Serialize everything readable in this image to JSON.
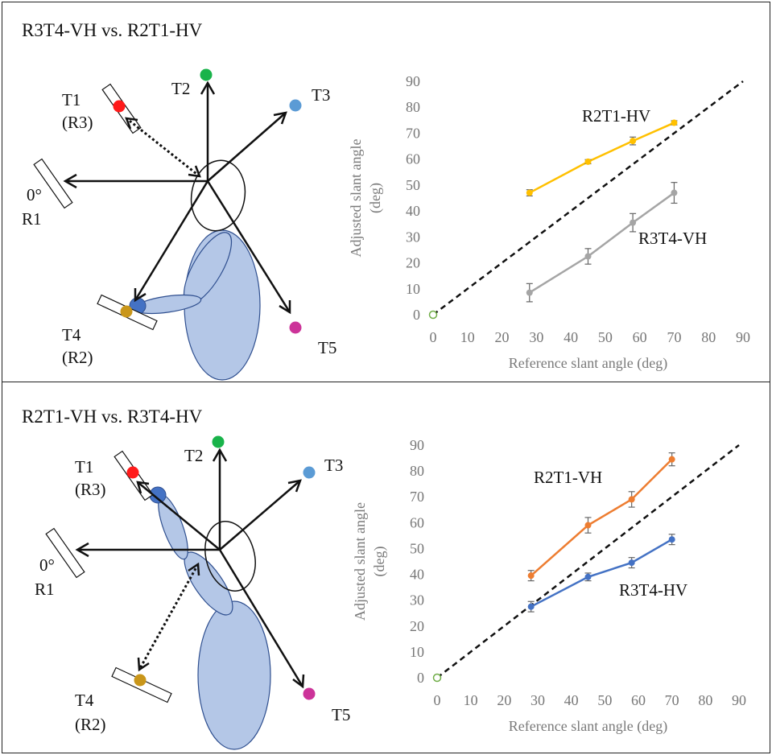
{
  "panels": [
    {
      "title": "R3T4-VH vs. R2T1-HV",
      "diagram": {
        "labels": {
          "t1": "T1",
          "r3": "(R3)",
          "t2": "T2",
          "t3": "T3",
          "zero": "0°",
          "r1": "R1",
          "t4": "T4",
          "r2": "(R2)",
          "t5": "T5"
        },
        "colors": {
          "t1": "#ff1a1a",
          "t2": "#19b34a",
          "t3": "#5b9bd5",
          "t4": "#c9961a",
          "t5": "#cc3399",
          "body": "#b4c7e7",
          "body_edge": "#2f4f8f",
          "marker": "#4472c4"
        }
      }
    },
    {
      "title": "R2T1-VH vs. R3T4-HV",
      "diagram": {
        "labels": {
          "t1": "T1",
          "r3": "(R3)",
          "t2": "T2",
          "t3": "T3",
          "zero": "0°",
          "r1": "R1",
          "t4": "T4",
          "r2": "(R2)",
          "t5": "T5"
        },
        "colors": {
          "t1": "#ff1a1a",
          "t2": "#19b34a",
          "t3": "#5b9bd5",
          "t4": "#c9961a",
          "t5": "#cc3399",
          "body": "#b4c7e7",
          "body_edge": "#2f4f8f",
          "marker": "#4472c4"
        }
      }
    }
  ],
  "chart_data": [
    {
      "type": "line",
      "xlabel": "Reference slant angle (deg)",
      "ylabel": "Adjusted slant angle (deg)",
      "xlim": [
        0,
        90
      ],
      "ylim": [
        0,
        90
      ],
      "xticks": [
        0,
        10,
        20,
        30,
        40,
        50,
        60,
        70,
        80,
        90
      ],
      "yticks": [
        0,
        10,
        20,
        30,
        40,
        50,
        60,
        70,
        80,
        90
      ],
      "grid": false,
      "reference_line": {
        "style": "dashed",
        "from": [
          0,
          0
        ],
        "to": [
          90,
          90
        ]
      },
      "origin_marker": {
        "x": 0,
        "y": 0,
        "color": "#70ad47"
      },
      "series": [
        {
          "name": "R2T1-HV",
          "color": "#ffc000",
          "x": [
            28,
            45,
            58,
            70
          ],
          "y": [
            47,
            59,
            67,
            74
          ],
          "err": [
            1.2,
            0.8,
            1.5,
            0.8
          ]
        },
        {
          "name": "R3T4-VH",
          "color": "#a5a5a5",
          "x": [
            28,
            45,
            58,
            70
          ],
          "y": [
            8.5,
            22.5,
            35.5,
            47
          ],
          "err": [
            3.5,
            3,
            3.5,
            4
          ]
        }
      ]
    },
    {
      "type": "line",
      "xlabel": "Reference slant angle (deg)",
      "ylabel": "Adjusted slant angle (deg)",
      "xlim": [
        0,
        90
      ],
      "ylim": [
        0,
        90
      ],
      "xticks": [
        0,
        10,
        20,
        30,
        40,
        50,
        60,
        70,
        80,
        90
      ],
      "yticks": [
        0,
        10,
        20,
        30,
        40,
        50,
        60,
        70,
        80,
        90
      ],
      "grid": false,
      "reference_line": {
        "style": "dashed",
        "from": [
          0,
          0
        ],
        "to": [
          90,
          90
        ]
      },
      "origin_marker": {
        "x": 0,
        "y": 0,
        "color": "#70ad47"
      },
      "series": [
        {
          "name": "R2T1-VH",
          "color": "#ed7d31",
          "x": [
            28,
            45,
            58,
            70
          ],
          "y": [
            39.5,
            59,
            69,
            84.5
          ],
          "err": [
            2,
            3,
            3,
            2.5
          ]
        },
        {
          "name": "R3T4-HV",
          "color": "#4472c4",
          "x": [
            28,
            45,
            58,
            70
          ],
          "y": [
            27.5,
            39,
            44.5,
            53.5
          ],
          "err": [
            2,
            1.5,
            2,
            2
          ]
        }
      ]
    }
  ]
}
